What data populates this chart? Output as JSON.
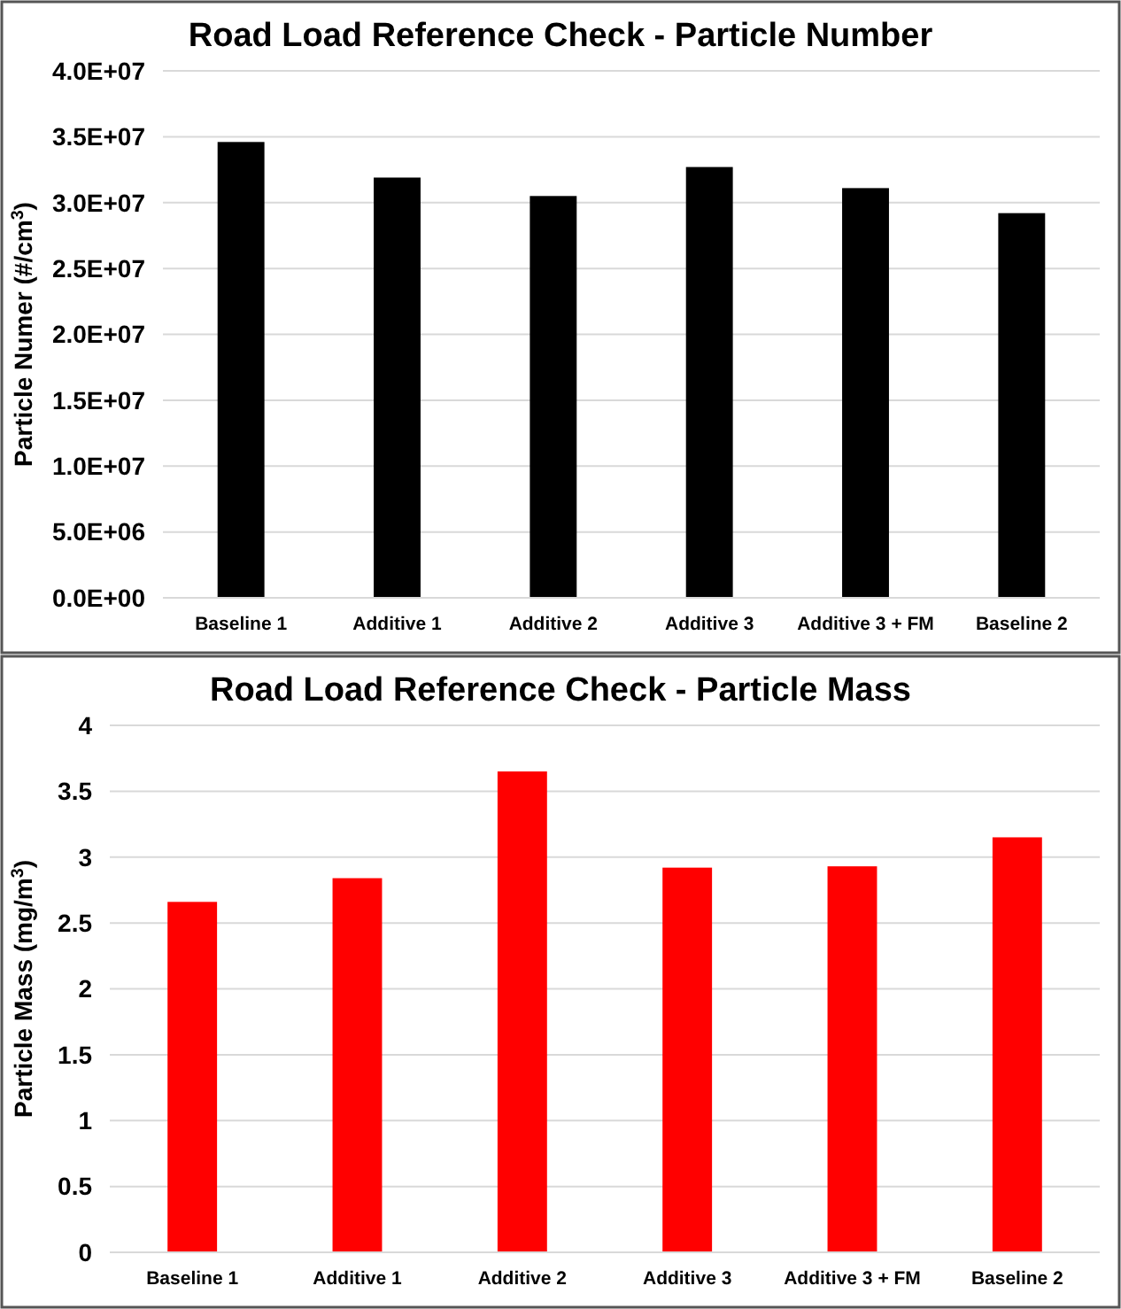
{
  "chart_data": [
    {
      "type": "bar",
      "title": "Road Load Reference Check - Particle Number",
      "ylabel": "Particle Numer (#/cm$^{3}$)",
      "categories": [
        "Baseline 1",
        "Additive 1",
        "Additive 2",
        "Additive 3",
        "Additive 3 + FM",
        "Baseline 2"
      ],
      "values": [
        34600000,
        31900000,
        30500000,
        32700000,
        31100000,
        29200000
      ],
      "color": "#000000",
      "ylim": [
        0,
        40000000
      ],
      "yticks": [
        {
          "value": 0,
          "label": "0.0E+00"
        },
        {
          "value": 5000000,
          "label": "5.0E+06"
        },
        {
          "value": 10000000,
          "label": "1.0E+07"
        },
        {
          "value": 15000000,
          "label": "1.5E+07"
        },
        {
          "value": 20000000,
          "label": "2.0E+07"
        },
        {
          "value": 25000000,
          "label": "2.5E+07"
        },
        {
          "value": 30000000,
          "label": "3.0E+07"
        },
        {
          "value": 35000000,
          "label": "3.5E+07"
        },
        {
          "value": 40000000,
          "label": "4.0E+07"
        }
      ],
      "grid": "y"
    },
    {
      "type": "bar",
      "title": "Road Load Reference Check - Particle Mass",
      "ylabel": "Particle Mass (mg/m$^{3}$)",
      "categories": [
        "Baseline 1",
        "Additive 1",
        "Additive 2",
        "Additive 3",
        "Additive 3 + FM",
        "Baseline 2"
      ],
      "values": [
        2.66,
        2.84,
        3.65,
        2.92,
        2.93,
        3.15
      ],
      "color": "#ff0000",
      "ylim": [
        0,
        4
      ],
      "yticks": [
        0,
        0.5,
        1,
        1.5,
        2,
        2.5,
        3,
        3.5,
        4
      ],
      "grid": "y"
    }
  ]
}
